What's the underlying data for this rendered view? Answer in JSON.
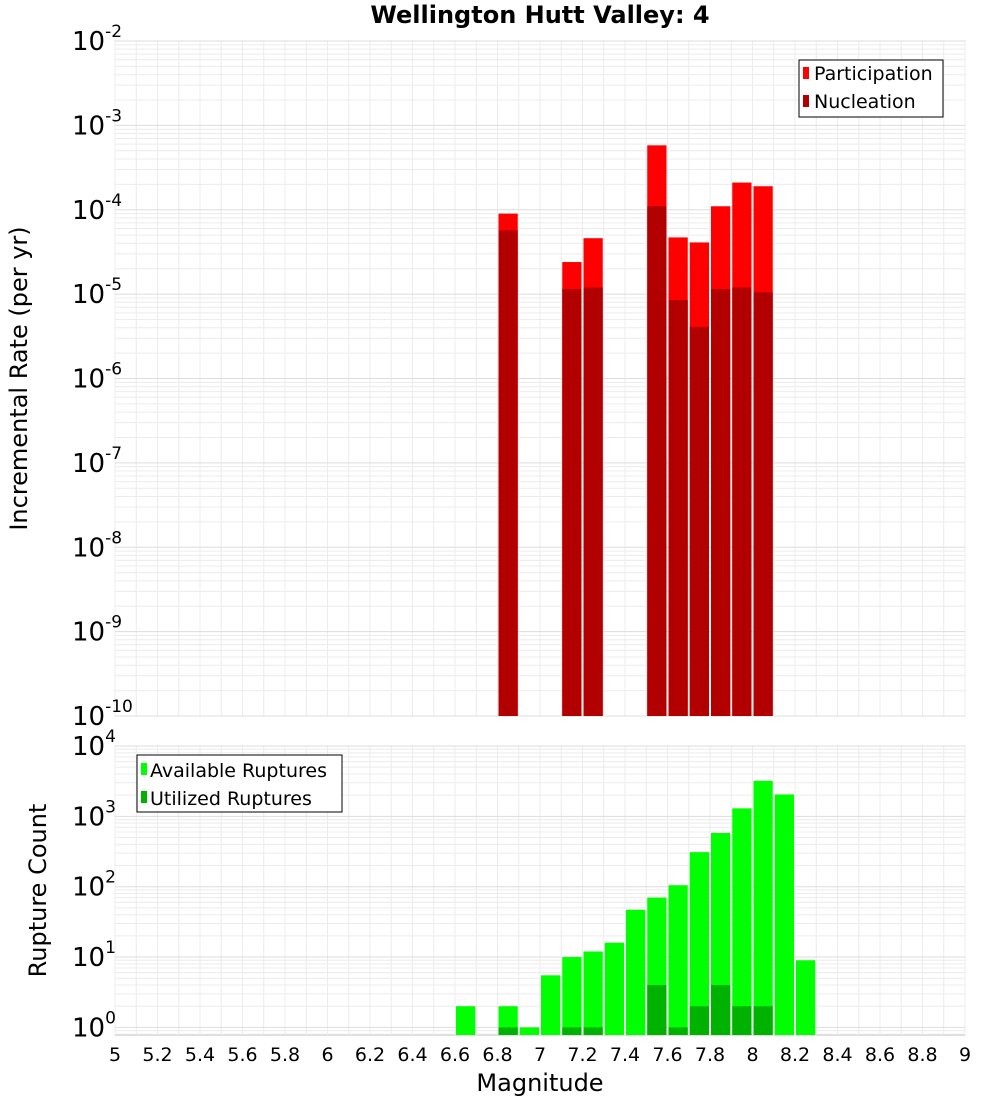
{
  "chart_data": [
    {
      "type": "bar",
      "title": "Wellington Hutt Valley: 4",
      "xlabel": "",
      "ylabel": "Incremental Rate (per yr)",
      "yscale": "log",
      "xlim": [
        5,
        9
      ],
      "ylim": [
        1e-10,
        0.01
      ],
      "ytick_labels": [
        {
          "base": "10",
          "exp": "-10"
        },
        {
          "base": "10",
          "exp": "-9"
        },
        {
          "base": "10",
          "exp": "-8"
        },
        {
          "base": "10",
          "exp": "-7"
        },
        {
          "base": "10",
          "exp": "-6"
        },
        {
          "base": "10",
          "exp": "-5"
        },
        {
          "base": "10",
          "exp": "-4"
        },
        {
          "base": "10",
          "exp": "-3"
        },
        {
          "base": "10",
          "exp": "-2"
        }
      ],
      "grid": true,
      "legend_position": "top-right",
      "series": [
        {
          "name": "Participation",
          "color": "#ff0000",
          "x": [
            6.85,
            7.15,
            7.25,
            7.55,
            7.65,
            7.75,
            7.85,
            7.95,
            8.05
          ],
          "values": [
            9e-05,
            2.4e-05,
            4.6e-05,
            0.00058,
            4.7e-05,
            4.1e-05,
            0.00011,
            0.00021,
            0.00019
          ]
        },
        {
          "name": "Nucleation",
          "color": "#b20000",
          "x": [
            6.85,
            7.15,
            7.25,
            7.55,
            7.65,
            7.75,
            7.85,
            7.95,
            8.05
          ],
          "values": [
            5.7e-05,
            1.15e-05,
            1.2e-05,
            0.00011,
            8.5e-06,
            4.1e-06,
            1.15e-05,
            1.2e-05,
            1.05e-05
          ]
        }
      ]
    },
    {
      "type": "bar",
      "title": "",
      "xlabel": "Magnitude",
      "ylabel": "Rupture Count",
      "yscale": "log",
      "xlim": [
        5,
        9
      ],
      "ylim": [
        0.78,
        10000
      ],
      "ytick_labels": [
        {
          "base": "10",
          "exp": "0"
        },
        {
          "base": "10",
          "exp": "1"
        },
        {
          "base": "10",
          "exp": "2"
        },
        {
          "base": "10",
          "exp": "3"
        },
        {
          "base": "10",
          "exp": "4"
        }
      ],
      "xtick_labels": [
        "5",
        "5.2",
        "5.4",
        "5.6",
        "5.8",
        "6",
        "6.2",
        "6.4",
        "6.6",
        "6.8",
        "7",
        "7.2",
        "7.4",
        "7.6",
        "7.8",
        "8",
        "8.2",
        "8.4",
        "8.6",
        "8.8",
        "9"
      ],
      "grid": true,
      "legend_position": "top-left",
      "series": [
        {
          "name": "Available Ruptures",
          "color": "#00ff00",
          "x": [
            6.65,
            6.85,
            6.95,
            7.05,
            7.15,
            7.25,
            7.35,
            7.45,
            7.55,
            7.65,
            7.75,
            7.85,
            7.95,
            8.05,
            8.15,
            8.25
          ],
          "values": [
            2,
            2,
            1,
            5.5,
            10,
            12,
            16,
            47,
            70,
            105,
            310,
            580,
            1300,
            3200,
            2050,
            9
          ]
        },
        {
          "name": "Utilized Ruptures",
          "color": "#00b200",
          "x": [
            6.85,
            7.15,
            7.25,
            7.55,
            7.65,
            7.75,
            7.85,
            7.95,
            8.05
          ],
          "values": [
            1,
            1,
            1,
            4,
            1,
            2,
            4,
            2,
            2
          ]
        }
      ]
    }
  ]
}
